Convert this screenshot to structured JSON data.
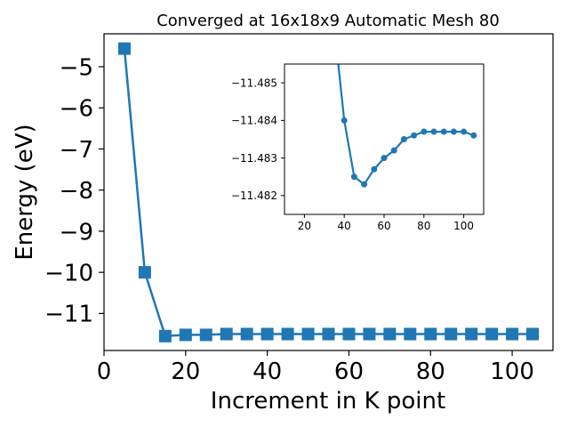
{
  "chart_data": [
    {
      "type": "line",
      "title": "Converged at 16x18x9 Automatic Mesh 80",
      "xlabel": "Increment in K point",
      "ylabel": "Energy (eV)",
      "xlim": [
        0,
        110
      ],
      "ylim": [
        -11.9,
        -4.2
      ],
      "xticks": [
        0,
        20,
        40,
        60,
        80,
        100
      ],
      "xtick_labels": [
        "0",
        "20",
        "40",
        "60",
        "80",
        "100"
      ],
      "yticks": [
        -5,
        -6,
        -7,
        -8,
        -9,
        -10,
        -11
      ],
      "ytick_labels": [
        "−5",
        "−6",
        "−7",
        "−8",
        "−9",
        "−10",
        "−11"
      ],
      "color": "#1f77b4",
      "marker": "square",
      "series": [
        {
          "x": [
            5,
            10,
            15,
            20,
            25,
            30,
            35,
            40,
            45,
            50,
            55,
            60,
            65,
            70,
            75,
            80,
            85,
            90,
            95,
            100,
            105
          ],
          "y": [
            -4.56,
            -10.0,
            -11.55,
            -11.52,
            -11.52,
            -11.5,
            -11.5,
            -11.5,
            -11.5,
            -11.5,
            -11.5,
            -11.5,
            -11.5,
            -11.5,
            -11.5,
            -11.5,
            -11.5,
            -11.5,
            -11.5,
            -11.5,
            -11.5
          ]
        }
      ]
    },
    {
      "type": "line",
      "inset": true,
      "title": "",
      "xlabel": "",
      "ylabel": "",
      "xlim": [
        10,
        110
      ],
      "ylim": [
        -11.4815,
        -11.4855
      ],
      "xticks": [
        20,
        40,
        60,
        80,
        100
      ],
      "xtick_labels": [
        "20",
        "40",
        "60",
        "80",
        "100"
      ],
      "yticks": [
        -11.482,
        -11.483,
        -11.484,
        -11.485
      ],
      "ytick_labels": [
        "−11.482",
        "−11.483",
        "−11.484",
        "−11.485"
      ],
      "color": "#1f77b4",
      "marker": "circle",
      "series": [
        {
          "x": [
            35,
            40,
            45,
            50,
            55,
            60,
            65,
            70,
            75,
            80,
            85,
            90,
            95,
            100,
            105
          ],
          "y": [
            -11.4865,
            -11.484,
            -11.4825,
            -11.4823,
            -11.4827,
            -11.483,
            -11.4832,
            -11.4835,
            -11.4836,
            -11.4837,
            -11.4837,
            -11.4837,
            -11.4837,
            -11.4837,
            -11.4836
          ]
        }
      ]
    }
  ]
}
